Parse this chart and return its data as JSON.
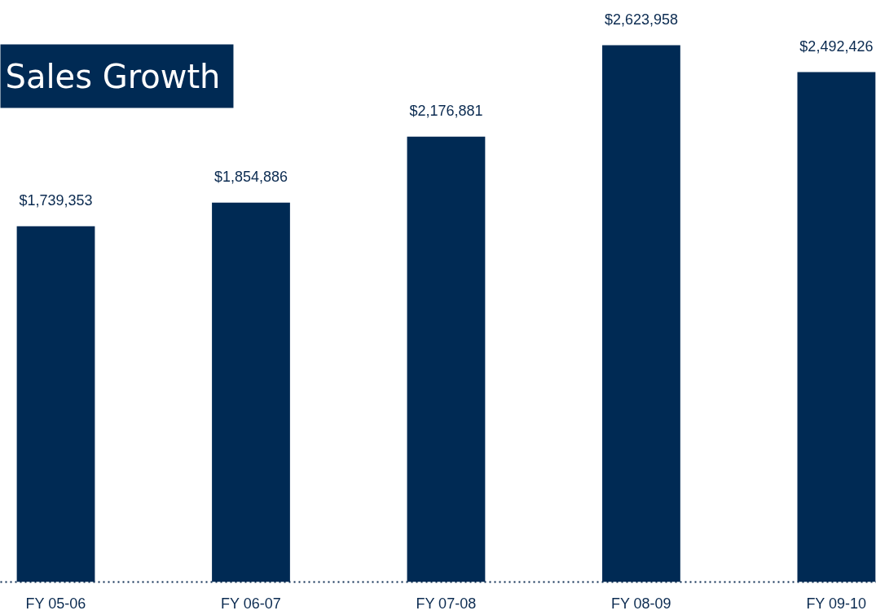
{
  "chart_data": {
    "type": "bar",
    "title": "Sales Growth",
    "categories": [
      "FY 05-06",
      "FY 06-07",
      "FY 07-08",
      "FY 08-09",
      "FY 09-10"
    ],
    "values": [
      1739353,
      1854886,
      2176881,
      2623958,
      2492426
    ],
    "value_labels": [
      "$1,739,353",
      "$1,854,886",
      "$2,176,881",
      "$2,623,958",
      "$2,492,426"
    ],
    "color": "#002a54"
  }
}
